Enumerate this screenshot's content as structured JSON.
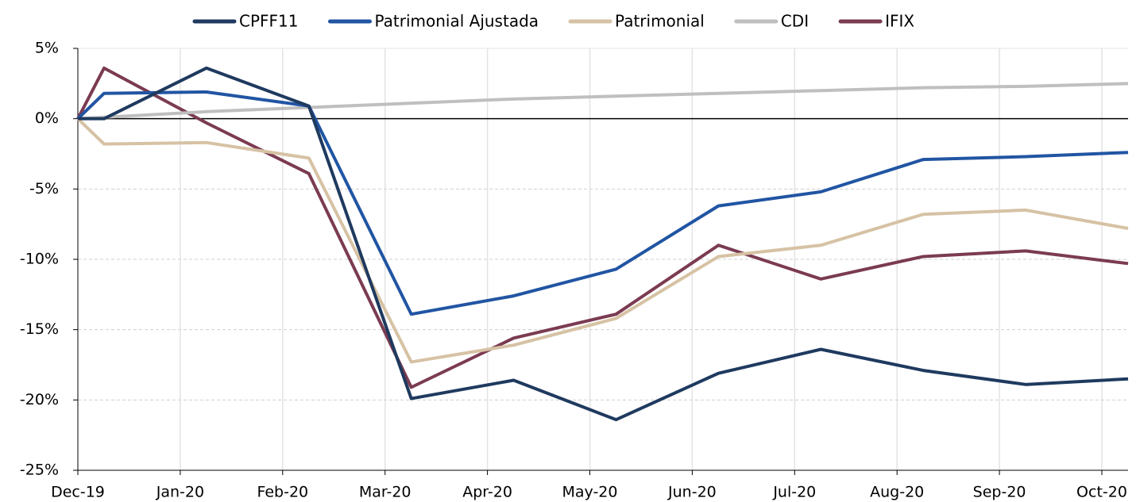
{
  "chart_data": {
    "type": "line",
    "categories": [
      null,
      "Dec-19",
      "Jan-20",
      "Feb-20",
      "Mar-20",
      "Apr-20",
      "May-20",
      "Jun-20",
      "Jul-20",
      "Aug-20",
      "Sep-20",
      "Oct-20"
    ],
    "series": [
      {
        "name": "CPFF11",
        "color": "#1f3a5f",
        "values": [
          0,
          0,
          3.6,
          0.9,
          -19.9,
          -18.6,
          -21.4,
          -18.1,
          -16.4,
          -17.9,
          -18.9,
          -18.5
        ]
      },
      {
        "name": "Patrimonial Ajustada",
        "color": "#2155a3",
        "values": [
          0,
          1.8,
          1.9,
          0.9,
          -13.9,
          -12.6,
          -10.7,
          -6.2,
          -5.2,
          -2.9,
          -2.7,
          -2.4
        ]
      },
      {
        "name": "Patrimonial",
        "color": "#d6c2a4",
        "values": [
          0,
          -1.8,
          -1.7,
          -2.8,
          -17.3,
          -16.1,
          -14.2,
          -9.8,
          -9.0,
          -6.8,
          -6.5,
          -7.8
        ]
      },
      {
        "name": "CDI",
        "color": "#bfbfbf",
        "values": [
          0,
          0.1,
          0.5,
          0.8,
          1.1,
          1.4,
          1.6,
          1.8,
          2.0,
          2.2,
          2.3,
          2.5
        ]
      },
      {
        "name": "IFIX",
        "color": "#7b3b52",
        "values": [
          0,
          3.6,
          -0.3,
          -3.9,
          -19.1,
          -15.6,
          -13.9,
          -9.0,
          -11.4,
          -9.8,
          -9.4,
          -10.3
        ]
      }
    ],
    "ylim": [
      -25,
      5
    ],
    "yticks": [
      {
        "value": -25,
        "label": "-25%"
      },
      {
        "value": -20,
        "label": "-20%"
      },
      {
        "value": -15,
        "label": "-15%"
      },
      {
        "value": -10,
        "label": "-10%"
      },
      {
        "value": -5,
        "label": "-5%"
      },
      {
        "value": 0,
        "label": "0%"
      },
      {
        "value": 5,
        "label": "5%"
      }
    ],
    "grid": true,
    "legend": "top"
  }
}
